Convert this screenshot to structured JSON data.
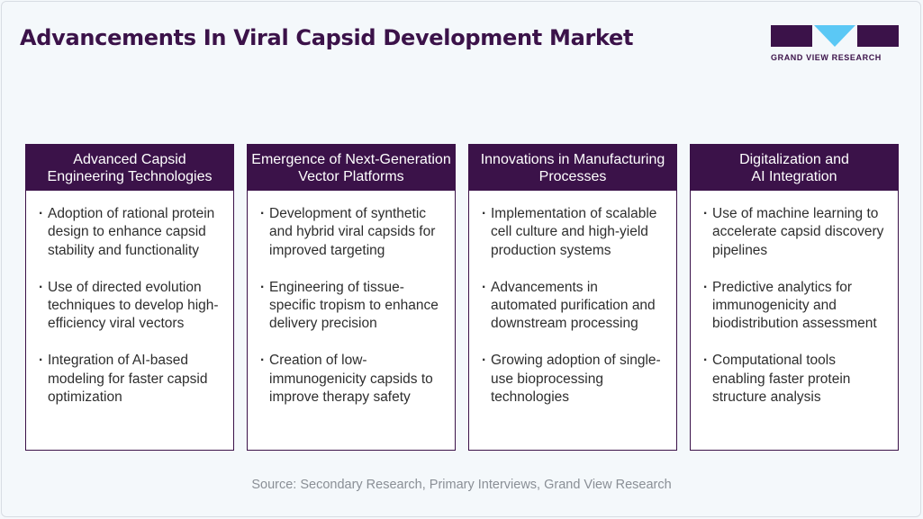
{
  "title": "Advancements In Viral Capsid Development Market",
  "logo": {
    "text": "GRAND VIEW RESEARCH",
    "colors": {
      "primary": "#3b1249",
      "accent": "#5bc8f5"
    }
  },
  "cards": [
    {
      "title": "Advanced Capsid\nEngineering Technologies",
      "items": [
        "Adoption of rational protein design to enhance capsid stability and functionality",
        "Use of directed evolution techniques to develop high-efficiency viral vectors",
        "Integration of AI-based modeling for faster capsid optimization"
      ]
    },
    {
      "title": "Emergence of Next-Generation\nVector Platforms",
      "items": [
        "Development of synthetic and hybrid viral capsids for improved targeting",
        "Engineering of tissue-specific tropism to enhance delivery precision",
        "Creation of low-immunogenicity capsids to improve therapy safety"
      ]
    },
    {
      "title": "Innovations in Manufacturing\nProcesses",
      "items": [
        "Implementation of scalable cell culture and high-yield production systems",
        "Advancements in automated purification and downstream processing",
        "Growing adoption of single-use bioprocessing technologies"
      ]
    },
    {
      "title": "Digitalization and\nAI Integration",
      "items": [
        "Use of machine learning to accelerate capsid discovery pipelines",
        "Predictive analytics for immunogenicity and biodistribution assessment",
        "Computational tools enabling faster protein structure analysis"
      ]
    }
  ],
  "source": "Source: Secondary Research, Primary Interviews, Grand View Research"
}
